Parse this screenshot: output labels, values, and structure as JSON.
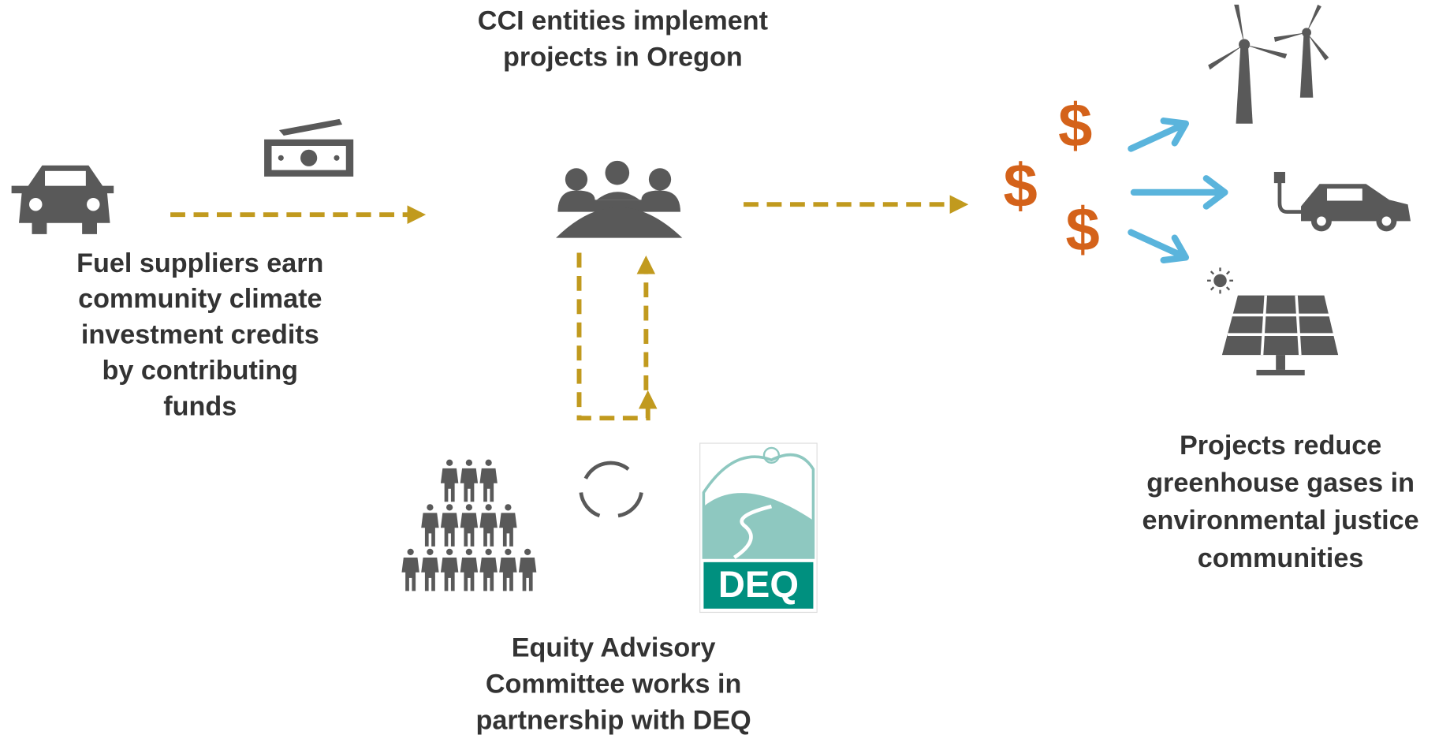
{
  "steps": [
    {
      "label_lines": [
        "Fuel suppliers earn",
        "community climate",
        "investment credits",
        "by contributing",
        "funds"
      ]
    },
    {
      "label_lines": [
        "CCI entities implement",
        "projects in Oregon"
      ]
    },
    {
      "label_lines": [
        "Equity Advisory",
        "Committee works in",
        "partnership with DEQ"
      ]
    },
    {
      "label_lines": [
        "Projects reduce",
        "greenhouse gases in",
        "environmental justice",
        "communities"
      ]
    }
  ],
  "dollar_signs": [
    "$",
    "$",
    "$"
  ],
  "logo": "DEQ"
}
